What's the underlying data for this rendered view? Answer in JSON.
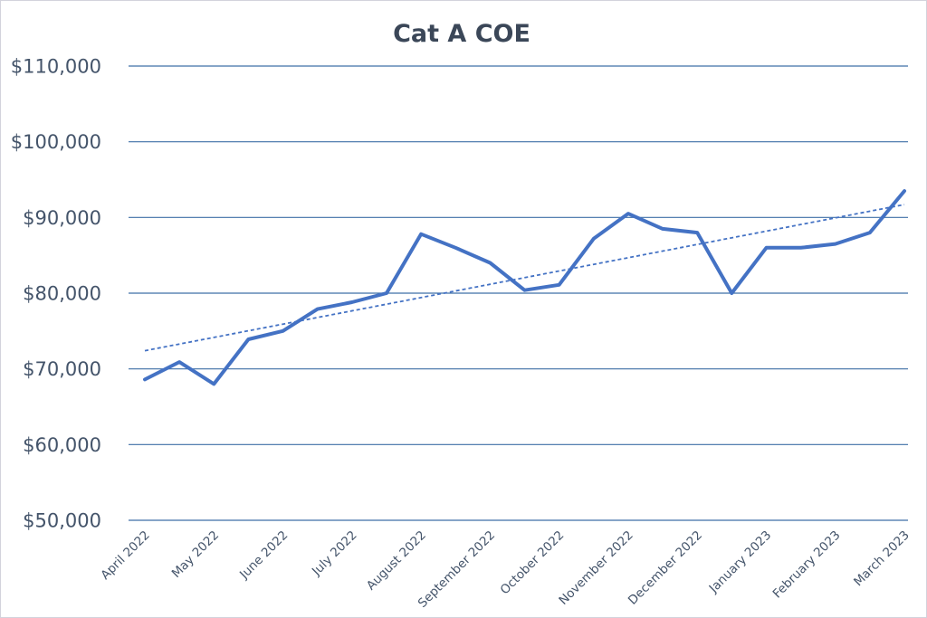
{
  "chart_data": {
    "type": "line",
    "title": "Cat A COE",
    "xlabel": "",
    "ylabel": "",
    "ylim": [
      50000,
      110000
    ],
    "y_ticks": [
      50000,
      60000,
      70000,
      80000,
      90000,
      100000,
      110000
    ],
    "y_tick_labels": [
      "$50,000",
      "$60,000",
      "$70,000",
      "$80,000",
      "$90,000",
      "$100,000",
      "$110,000"
    ],
    "x_tick_labels": [
      "April 2022",
      "May 2022",
      "June 2022",
      "July 2022",
      "August 2022",
      "September 2022",
      "October 2022",
      "November 2022",
      "December 2022",
      "January 2023",
      "February 2023",
      "March 2023"
    ],
    "grid": true,
    "legend": "none",
    "colors": {
      "series": "#4472c4",
      "grid": "#3e6fa6",
      "text": "#44546a",
      "title": "#3b4758"
    },
    "series": [
      {
        "name": "Cat A COE",
        "values": [
          68600,
          70900,
          68000,
          73900,
          75000,
          77900,
          78800,
          80000,
          87800,
          86000,
          84000,
          80400,
          81100,
          87200,
          90500,
          88500,
          88000,
          80000,
          86000,
          86000,
          86500,
          88000,
          93500
        ]
      }
    ],
    "trendline": {
      "type": "linear",
      "style": "dashed",
      "start_value": 72400,
      "end_value": 91700
    }
  }
}
